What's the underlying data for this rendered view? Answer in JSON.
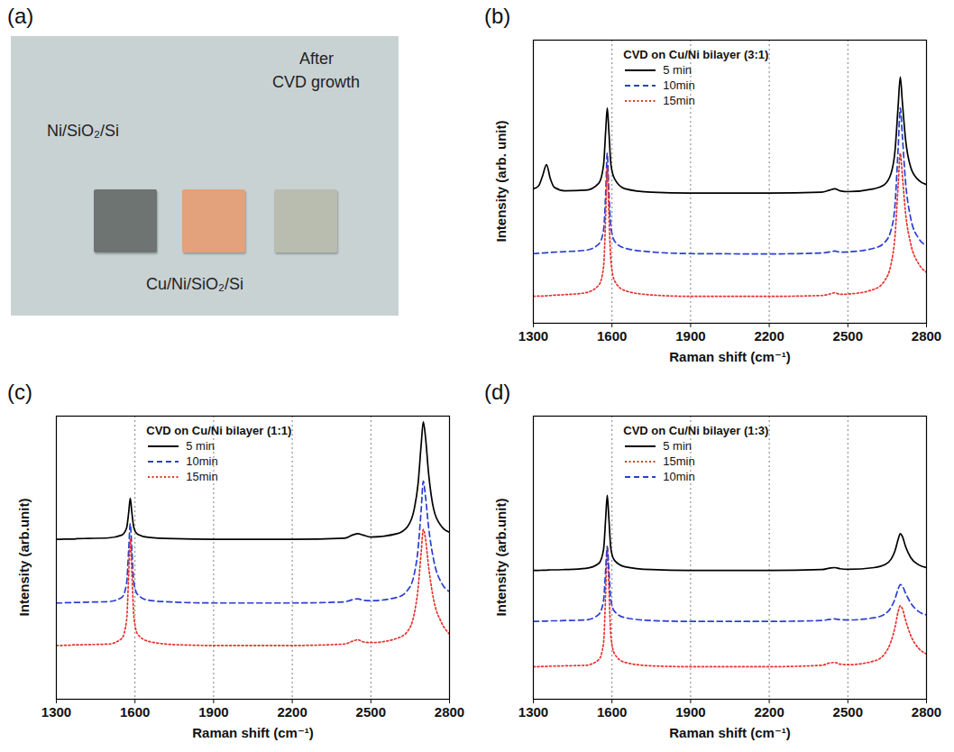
{
  "photo_panel": {
    "letter": "(a)",
    "background": "#c9d2d3",
    "samples": [
      {
        "label_lines": [
          "Ni/SiO₂/Si"
        ],
        "color": "#6e7471"
      },
      {
        "label_lines": [
          "Cu/Ni/SiO₂/Si"
        ],
        "color": "#e3a27b"
      },
      {
        "label_lines": [
          "After",
          "CVD growth"
        ],
        "color": "#b9bdb0"
      }
    ]
  },
  "chart_data": [
    {
      "type": "line",
      "panel_label": "(b)",
      "legend_title": "CVD on Cu/Ni bilayer (3:1)",
      "legend": "top-left",
      "x_label": "Raman shift (cm⁻¹)",
      "y_label": "Intensity (arb. unit)",
      "xlim": [
        1300,
        2800
      ],
      "xticks": [
        1300,
        1600,
        1900,
        2200,
        2500,
        2800
      ],
      "ylim": [
        0,
        100
      ],
      "yticks": [],
      "tick_labels": "x",
      "grid": "x",
      "x": [
        1300,
        1320,
        1335,
        1350,
        1365,
        1380,
        1420,
        1500,
        1550,
        1568,
        1576,
        1582,
        1588,
        1596,
        1610,
        1650,
        1750,
        1900,
        2200,
        2400,
        2430,
        2450,
        2470,
        2500,
        2600,
        2640,
        2665,
        2680,
        2692,
        2700,
        2708,
        2720,
        2740,
        2770,
        2800
      ],
      "series": [
        {
          "name": "5 min",
          "color": "#000000",
          "line_style": "solid",
          "values": [
            47.5,
            48.5,
            52,
            56,
            51,
            48,
            46.8,
            47,
            49.5,
            56,
            68,
            76,
            68,
            56,
            51,
            47.5,
            46.3,
            46,
            46,
            46.3,
            47,
            47.5,
            46.8,
            46.5,
            47.5,
            49,
            53,
            61,
            77,
            87,
            78,
            65,
            55,
            50.5,
            49
          ]
        },
        {
          "name": "10min",
          "color": "#2b3fd0",
          "line_style": "dashed",
          "values": [
            24.6,
            24.7,
            24.8,
            24.9,
            25,
            25.1,
            25.3,
            25.8,
            28,
            33,
            46,
            60,
            47,
            34,
            29,
            26.5,
            25.2,
            24.6,
            24.5,
            24.8,
            25.2,
            25.5,
            25.1,
            25.2,
            26.5,
            28.5,
            33,
            42,
            62,
            76,
            66,
            50,
            37,
            30,
            27.5
          ]
        },
        {
          "name": "15min",
          "color": "#e5322d",
          "line_style": "dotted",
          "values": [
            9.5,
            9.6,
            9.6,
            9.7,
            9.8,
            9.9,
            10.1,
            10.8,
            13.5,
            20,
            38,
            55,
            39,
            22,
            15,
            11.5,
            10,
            9.5,
            9.5,
            9.8,
            10.3,
            10.8,
            10.2,
            10.3,
            12,
            15,
            21,
            31,
            49,
            60,
            52,
            39,
            28,
            21,
            18
          ]
        }
      ]
    },
    {
      "type": "line",
      "panel_label": "(c)",
      "legend_title": "CVD on Cu/Ni bilayer (1:1)",
      "legend": "top-left",
      "x_label": "Raman shift (cm⁻¹)",
      "y_label": "Intensity (arb.unit)",
      "xlim": [
        1300,
        2800
      ],
      "xticks": [
        1300,
        1600,
        1900,
        2200,
        2500,
        2800
      ],
      "ylim": [
        0,
        100
      ],
      "yticks": [],
      "tick_labels": "x",
      "grid": "x",
      "x": [
        1300,
        1320,
        1335,
        1350,
        1365,
        1380,
        1420,
        1500,
        1550,
        1568,
        1576,
        1582,
        1588,
        1596,
        1610,
        1650,
        1750,
        1900,
        2200,
        2400,
        2430,
        2450,
        2470,
        2500,
        2600,
        2640,
        2665,
        2680,
        2692,
        2700,
        2708,
        2720,
        2740,
        2770,
        2800
      ],
      "series": [
        {
          "name": "5 min",
          "color": "#000000",
          "line_style": "solid",
          "values": [
            56.5,
            56.5,
            56.6,
            56.6,
            56.6,
            56.7,
            56.8,
            57,
            58,
            60.5,
            66,
            71,
            66,
            60.5,
            58.3,
            57.2,
            56.7,
            56.5,
            56.5,
            56.9,
            58,
            58.5,
            58,
            57.3,
            58.5,
            61,
            67,
            76,
            90,
            98,
            93,
            80,
            67,
            61,
            59
          ]
        },
        {
          "name": "10min",
          "color": "#2b3fd0",
          "line_style": "dashed",
          "values": [
            34,
            34,
            34.1,
            34.1,
            34.2,
            34.2,
            34.3,
            34.5,
            36,
            41,
            53,
            62,
            53,
            41,
            37,
            35,
            34.3,
            34,
            34,
            34.4,
            35.2,
            35.5,
            35,
            34.8,
            36,
            38.5,
            44,
            53,
            67,
            77,
            72,
            61,
            49,
            41,
            38
          ]
        },
        {
          "name": "15min",
          "color": "#e5322d",
          "line_style": "dotted",
          "values": [
            19,
            19,
            19.1,
            19.1,
            19.2,
            19.2,
            19.3,
            19.5,
            21.5,
            28,
            44,
            56.5,
            45,
            29,
            23,
            20.5,
            19.3,
            19,
            19,
            19.5,
            20.5,
            21,
            20.3,
            20,
            21.5,
            24,
            30,
            39,
            52,
            60,
            57,
            47,
            35,
            27,
            23
          ]
        }
      ]
    },
    {
      "type": "line",
      "panel_label": "(d)",
      "legend_title": "CVD on Cu/Ni bilayer (1:3)",
      "legend": "top-left",
      "x_label": "Raman shift (cm⁻¹)",
      "y_label": "Intensity (arb.unit)",
      "xlim": [
        1300,
        2800
      ],
      "xticks": [
        1300,
        1600,
        1900,
        2200,
        2500,
        2800
      ],
      "ylim": [
        0,
        100
      ],
      "yticks": [],
      "tick_labels": "x",
      "grid": "x",
      "x": [
        1300,
        1320,
        1335,
        1350,
        1365,
        1380,
        1420,
        1500,
        1550,
        1568,
        1576,
        1582,
        1588,
        1596,
        1610,
        1650,
        1750,
        1900,
        2200,
        2400,
        2430,
        2450,
        2470,
        2500,
        2600,
        2640,
        2665,
        2680,
        2692,
        2700,
        2708,
        2720,
        2740,
        2770,
        2800
      ],
      "series": [
        {
          "name": "5 min",
          "color": "#000000",
          "line_style": "solid",
          "values": [
            45.5,
            45.5,
            45.6,
            45.6,
            45.7,
            45.7,
            45.8,
            46.2,
            48,
            53,
            64,
            72,
            64,
            53,
            49,
            46.8,
            45.8,
            45.5,
            45.5,
            45.8,
            46.3,
            46.5,
            46.1,
            45.9,
            46.5,
            47.5,
            49.5,
            52.5,
            56.5,
            58.5,
            57.5,
            54,
            50,
            47.5,
            46.5
          ]
        },
        {
          "name": "15min",
          "color": "#e5322d",
          "line_style": "dotted",
          "values": [
            11.5,
            11.5,
            11.6,
            11.6,
            11.7,
            11.7,
            11.8,
            12,
            14,
            20,
            38,
            53.5,
            40,
            22,
            16,
            13,
            11.8,
            11.5,
            11.5,
            12,
            12.8,
            13,
            12.4,
            12.2,
            13.5,
            16,
            20.5,
            25.5,
            31,
            33,
            32,
            28,
            22.5,
            18,
            16
          ]
        },
        {
          "name": "10min",
          "color": "#2b3fd0",
          "line_style": "dashed",
          "values": [
            27.5,
            27.5,
            27.6,
            27.6,
            27.7,
            27.7,
            27.8,
            28,
            30,
            35,
            46,
            54,
            46,
            35,
            31,
            28.8,
            27.8,
            27.5,
            27.5,
            27.8,
            28.2,
            28.4,
            28.1,
            28,
            28.8,
            30,
            32.5,
            35.5,
            39,
            40.5,
            40,
            37.5,
            34,
            31,
            29.8
          ]
        }
      ]
    }
  ]
}
